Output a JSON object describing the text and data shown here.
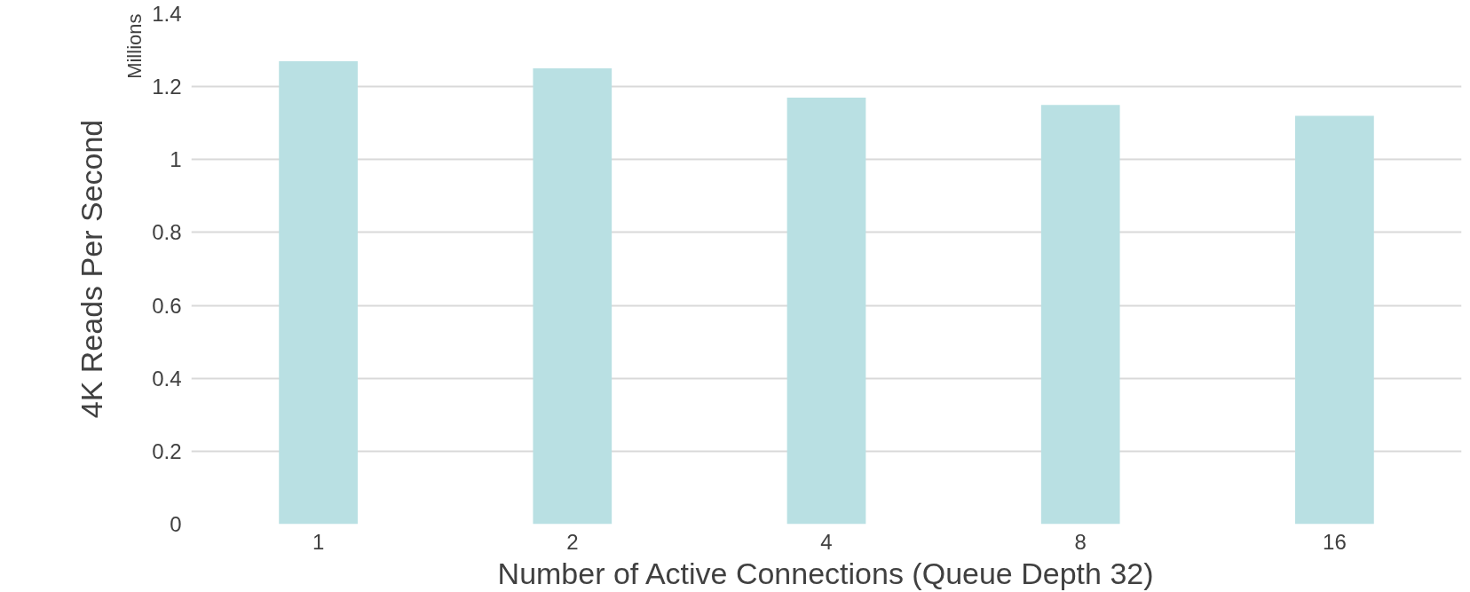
{
  "chart_data": {
    "type": "bar",
    "xlabel": "Number of Active Connections (Queue Depth 32)",
    "ylabel": "4K Reads Per Second",
    "categories": [
      "1",
      "2",
      "4",
      "8",
      "16"
    ],
    "values": [
      1.27,
      1.25,
      1.17,
      1.15,
      1.12
    ],
    "color": "#b9e0e3",
    "ylim": [
      0,
      1.4
    ],
    "yticks": [
      0,
      0.2,
      0.4,
      0.6,
      0.8,
      1,
      1.2,
      1.4
    ],
    "grid": "y",
    "annotations": [
      "Millions"
    ]
  }
}
